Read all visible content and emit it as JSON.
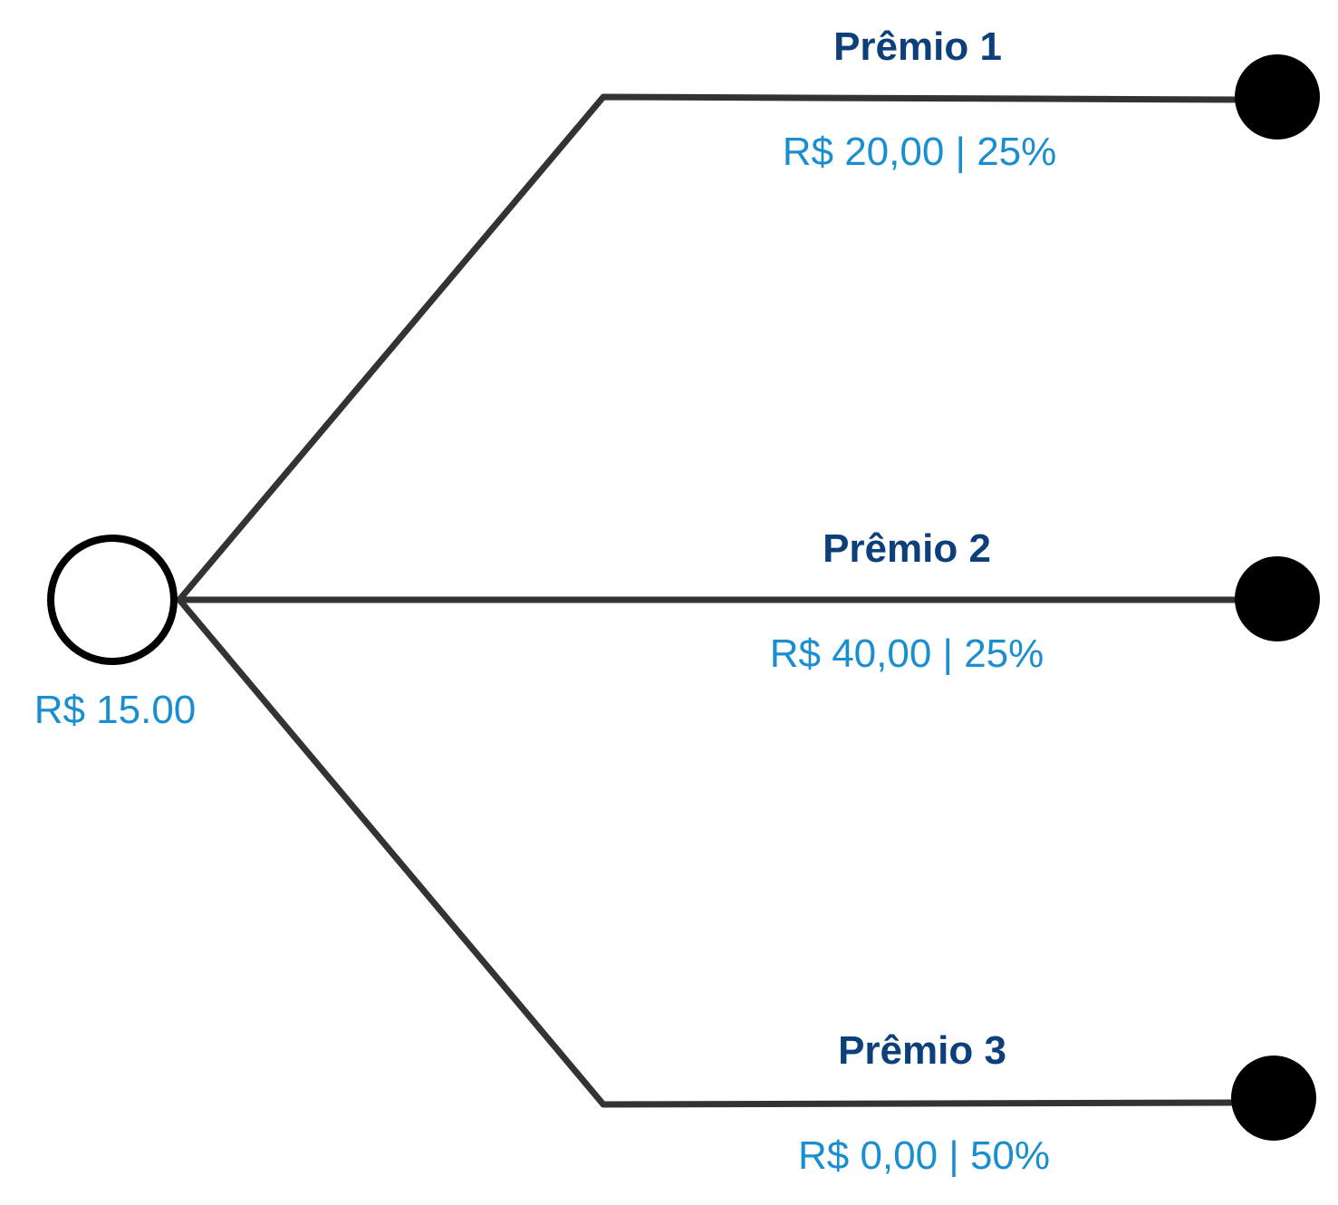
{
  "root": {
    "value": "R$ 15.00"
  },
  "branches": [
    {
      "title": "Prêmio 1",
      "value_label": "R$ 20,00 | 25%"
    },
    {
      "title": "Prêmio 2",
      "value_label": "R$ 40,00 | 25%"
    },
    {
      "title": "Prêmio 3",
      "value_label": "R$ 0,00 | 50%"
    }
  ],
  "colors": {
    "title": "#0d3f7a",
    "value": "#1a8fd0",
    "line": "#333333",
    "terminal_node": "#000000"
  }
}
